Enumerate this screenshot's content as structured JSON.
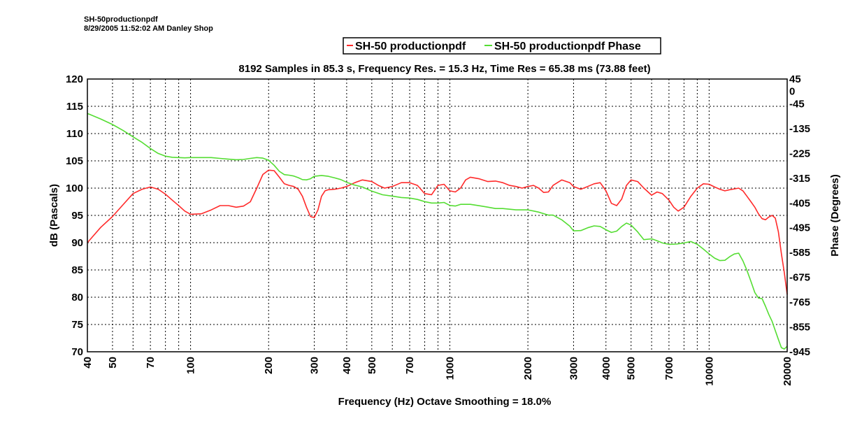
{
  "header": {
    "file_name": "SH-50productionpdf",
    "info_line": "8/29/2005  11:52:02 AM   Danley Shop"
  },
  "chart_data": {
    "type": "line",
    "title": "8192 Samples in 85.3 s, Frequency Res. = 15.3 Hz, Time Res = 65.38 ms (73.88 feet)",
    "xlabel": "Frequency (Hz) Octave Smoothing = 18.0%",
    "ylabel": "dB (Pascals)",
    "y2label": "Phase (Degrees)",
    "x_scale": "log",
    "xlim": [
      40,
      20000
    ],
    "ylim": [
      70,
      120
    ],
    "y2_ticks_printed": [
      "45",
      "0",
      "-45",
      "-135",
      "-225",
      "-315",
      "-405",
      "-495",
      "-585",
      "-675",
      "-765",
      "-855",
      "-945"
    ],
    "grid": true,
    "legend_position": "top-center",
    "x_ticks": [
      40,
      50,
      70,
      100,
      200,
      300,
      400,
      500,
      700,
      1000,
      2000,
      3000,
      4000,
      5000,
      7000,
      10000,
      20000
    ],
    "y_ticks": [
      70,
      75,
      80,
      85,
      90,
      95,
      100,
      105,
      110,
      115,
      120
    ],
    "series": [
      {
        "name": "SH-50 productionpdf",
        "color": "#ff2a2a",
        "axis": "left",
        "x": [
          40,
          45,
          50,
          55,
          60,
          65,
          70,
          75,
          80,
          85,
          90,
          95,
          100,
          110,
          120,
          130,
          140,
          150,
          160,
          170,
          180,
          190,
          200,
          210,
          220,
          230,
          240,
          250,
          260,
          270,
          280,
          290,
          300,
          310,
          320,
          330,
          340,
          360,
          380,
          400,
          430,
          460,
          500,
          530,
          560,
          600,
          650,
          700,
          750,
          800,
          850,
          900,
          950,
          1000,
          1050,
          1100,
          1150,
          1200,
          1300,
          1400,
          1500,
          1600,
          1700,
          1800,
          1900,
          2000,
          2100,
          2200,
          2300,
          2400,
          2500,
          2700,
          2900,
          3000,
          3200,
          3400,
          3600,
          3800,
          4000,
          4200,
          4400,
          4600,
          4800,
          5000,
          5300,
          5600,
          6000,
          6300,
          6600,
          7000,
          7300,
          7600,
          8000,
          8500,
          9000,
          9500,
          10000,
          10500,
          11000,
          11500,
          12000,
          13000,
          13500,
          14000,
          14500,
          15000,
          15500,
          16000,
          16500,
          17000,
          17500,
          18000,
          18500,
          19000,
          19500,
          20000
        ],
        "values": [
          90.0,
          92.8,
          94.8,
          97.0,
          99.0,
          99.8,
          100.2,
          99.8,
          98.9,
          97.8,
          96.8,
          95.8,
          95.2,
          95.3,
          96.0,
          96.8,
          96.8,
          96.5,
          96.7,
          97.5,
          100.0,
          102.5,
          103.3,
          103.2,
          102.0,
          100.8,
          100.5,
          100.3,
          99.8,
          98.5,
          96.5,
          94.8,
          94.6,
          96.0,
          98.5,
          99.5,
          99.7,
          99.8,
          100.0,
          100.3,
          101.0,
          101.5,
          101.2,
          100.5,
          100.0,
          100.3,
          101.0,
          101.0,
          100.5,
          99.0,
          98.8,
          100.5,
          100.7,
          99.5,
          99.3,
          100.0,
          101.5,
          102.0,
          101.7,
          101.2,
          101.3,
          101.0,
          100.5,
          100.3,
          100.0,
          100.3,
          100.5,
          100.0,
          99.2,
          99.3,
          100.5,
          101.5,
          101.0,
          100.3,
          99.8,
          100.3,
          100.8,
          101.0,
          99.5,
          97.2,
          96.8,
          98.0,
          100.5,
          101.5,
          101.2,
          100.0,
          98.7,
          99.3,
          99.0,
          97.8,
          96.5,
          95.8,
          96.5,
          98.5,
          100.0,
          100.8,
          100.7,
          100.2,
          99.8,
          99.5,
          99.7,
          100.0,
          99.5,
          98.5,
          97.5,
          96.5,
          95.3,
          94.4,
          94.2,
          94.7,
          95.0,
          94.5,
          92.0,
          88.0,
          84.5,
          80.5
        ]
      },
      {
        "name": "SH-50 productionpdf Phase",
        "color": "#55dd33",
        "axis": "right",
        "x": [
          40,
          45,
          50,
          55,
          60,
          65,
          70,
          75,
          80,
          85,
          90,
          95,
          100,
          110,
          120,
          130,
          140,
          150,
          160,
          170,
          180,
          190,
          200,
          210,
          220,
          230,
          240,
          250,
          260,
          270,
          280,
          290,
          300,
          320,
          340,
          360,
          380,
          400,
          430,
          460,
          500,
          550,
          600,
          650,
          700,
          750,
          800,
          850,
          900,
          950,
          1000,
          1050,
          1100,
          1200,
          1300,
          1400,
          1500,
          1600,
          1800,
          2000,
          2100,
          2200,
          2400,
          2500,
          2700,
          2900,
          3000,
          3200,
          3400,
          3600,
          3800,
          4000,
          4200,
          4400,
          4600,
          4800,
          5000,
          5300,
          5600,
          6000,
          6300,
          6600,
          7000,
          7500,
          8000,
          8500,
          9000,
          9500,
          10000,
          10500,
          11000,
          11500,
          12000,
          12500,
          13000,
          13500,
          14000,
          14500,
          15000,
          15500,
          16000,
          16500,
          17000,
          17500,
          18000,
          18500,
          19000,
          19500,
          20000
        ],
        "values": [
          -80,
          -100,
          -120,
          -142,
          -165,
          -185,
          -207,
          -225,
          -235,
          -239,
          -240,
          -241,
          -240,
          -240,
          -240,
          -243,
          -246,
          -248,
          -247,
          -243,
          -240,
          -242,
          -250,
          -268,
          -290,
          -302,
          -304,
          -307,
          -313,
          -320,
          -321,
          -317,
          -308,
          -305,
          -308,
          -314,
          -320,
          -330,
          -340,
          -347,
          -362,
          -375,
          -380,
          -385,
          -387,
          -392,
          -400,
          -405,
          -405,
          -403,
          -414,
          -416,
          -410,
          -410,
          -415,
          -420,
          -425,
          -425,
          -430,
          -430,
          -434,
          -438,
          -449,
          -449,
          -466,
          -489,
          -506,
          -505,
          -495,
          -488,
          -490,
          -502,
          -512,
          -507,
          -490,
          -478,
          -485,
          -510,
          -538,
          -535,
          -542,
          -550,
          -555,
          -554,
          -550,
          -545,
          -555,
          -572,
          -590,
          -605,
          -614,
          -613,
          -600,
          -590,
          -587,
          -615,
          -650,
          -690,
          -730,
          -750,
          -752,
          -780,
          -810,
          -835,
          -868,
          -900,
          -930,
          -935,
          -925
        ]
      }
    ]
  }
}
